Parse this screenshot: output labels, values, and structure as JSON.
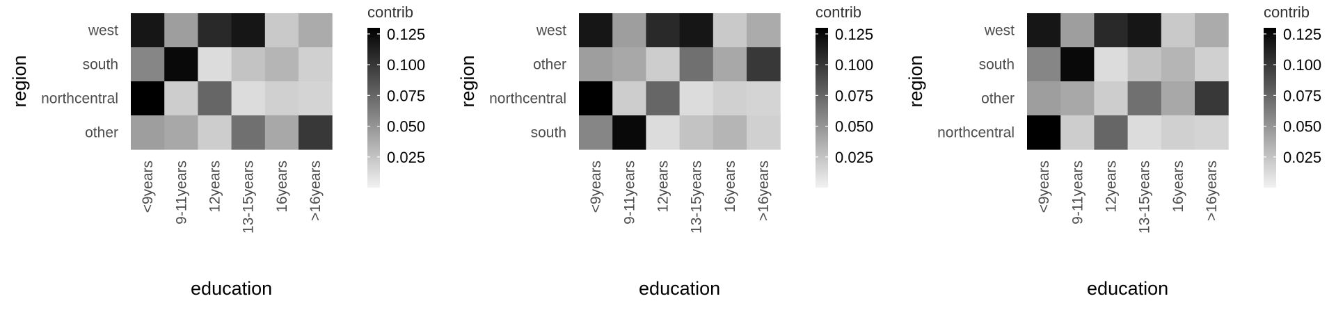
{
  "chart_data": [
    {
      "type": "heatmap",
      "xlabel": "education",
      "ylabel": "region",
      "x": [
        "<9years",
        "9-11years",
        "12years",
        "13-15years",
        "16years",
        ">16years"
      ],
      "y": [
        "west",
        "south",
        "northcentral",
        "other"
      ],
      "values": [
        [
          0.118,
          0.045,
          0.108,
          0.118,
          0.022,
          0.038
        ],
        [
          0.058,
          0.125,
          0.012,
          0.025,
          0.033,
          0.018
        ],
        [
          0.13,
          0.02,
          0.075,
          0.012,
          0.018,
          0.016
        ],
        [
          0.045,
          0.04,
          0.02,
          0.07,
          0.04,
          0.1
        ]
      ],
      "legend": {
        "title": "contrib",
        "ticks": [
          0.025,
          0.05,
          0.075,
          0.1,
          0.125
        ],
        "tick_labels": [
          "0.025",
          "0.050",
          "0.075",
          "0.100",
          "0.125"
        ],
        "range": [
          0,
          0.13
        ],
        "placement": "right"
      },
      "grid": false
    },
    {
      "type": "heatmap",
      "xlabel": "education",
      "ylabel": "region",
      "x": [
        "<9years",
        "9-11years",
        "12years",
        "13-15years",
        "16years",
        ">16years"
      ],
      "y": [
        "west",
        "other",
        "northcentral",
        "south"
      ],
      "values": [
        [
          0.118,
          0.045,
          0.108,
          0.118,
          0.022,
          0.038
        ],
        [
          0.045,
          0.04,
          0.02,
          0.07,
          0.04,
          0.1
        ],
        [
          0.13,
          0.02,
          0.075,
          0.012,
          0.018,
          0.016
        ],
        [
          0.058,
          0.125,
          0.012,
          0.025,
          0.033,
          0.018
        ]
      ],
      "legend": {
        "title": "contrib",
        "ticks": [
          0.025,
          0.05,
          0.075,
          0.1,
          0.125
        ],
        "tick_labels": [
          "0.025",
          "0.050",
          "0.075",
          "0.100",
          "0.125"
        ],
        "range": [
          0,
          0.13
        ],
        "placement": "right"
      },
      "grid": false
    },
    {
      "type": "heatmap",
      "xlabel": "education",
      "ylabel": "region",
      "x": [
        "<9years",
        "9-11years",
        "12years",
        "13-15years",
        "16years",
        ">16years"
      ],
      "y": [
        "west",
        "south",
        "other",
        "northcentral"
      ],
      "values": [
        [
          0.118,
          0.045,
          0.108,
          0.118,
          0.022,
          0.038
        ],
        [
          0.058,
          0.125,
          0.012,
          0.025,
          0.033,
          0.018
        ],
        [
          0.045,
          0.04,
          0.02,
          0.07,
          0.04,
          0.1
        ],
        [
          0.13,
          0.02,
          0.075,
          0.012,
          0.018,
          0.016
        ]
      ],
      "legend": {
        "title": "contrib",
        "ticks": [
          0.025,
          0.05,
          0.075,
          0.1,
          0.125
        ],
        "tick_labels": [
          "0.025",
          "0.050",
          "0.075",
          "0.100",
          "0.125"
        ],
        "range": [
          0,
          0.13
        ],
        "placement": "right"
      },
      "grid": false
    }
  ],
  "colors": {
    "low": "#f2f2f2",
    "high": "#000000"
  }
}
